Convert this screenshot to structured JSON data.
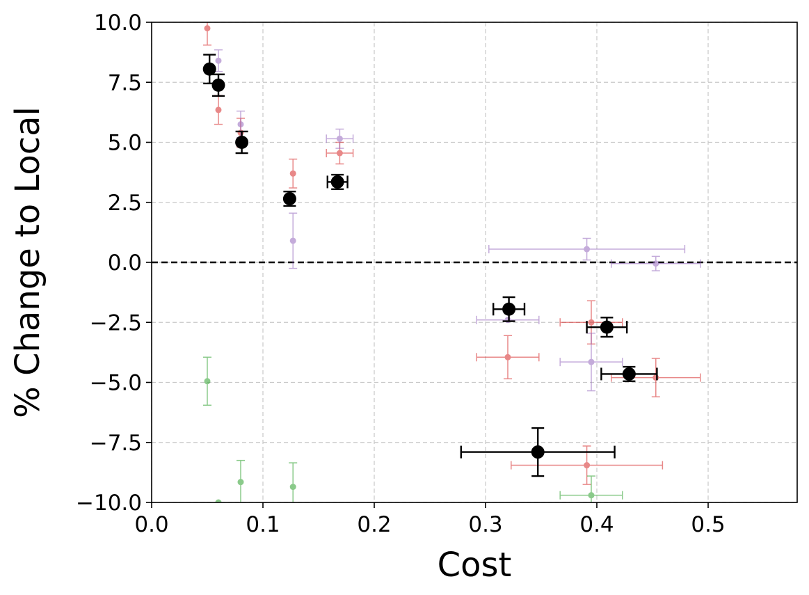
{
  "chart_data": {
    "type": "scatter",
    "title": "",
    "xlabel": "Cost",
    "ylabel": "% Change to Local",
    "xlim": [
      0.0,
      0.58
    ],
    "ylim": [
      -10.0,
      10.0
    ],
    "xticks": [
      "0.0",
      "0.1",
      "0.2",
      "0.3",
      "0.4",
      "0.5"
    ],
    "yticks": [
      "−10.0",
      "−7.5",
      "−5.0",
      "−2.5",
      "0.0",
      "2.5",
      "5.0",
      "7.5",
      "10.0"
    ],
    "grid": true,
    "reference_line": {
      "y": 0.0,
      "style": "dashed",
      "color": "#000000"
    },
    "series": [
      {
        "color": "#d62728",
        "points": [
          {
            "x": 0.05,
            "y": 9.75,
            "xerr": 0.0,
            "yerr": 0.7
          },
          {
            "x": 0.06,
            "y": 6.35,
            "xerr": 0.0,
            "yerr": 0.6
          },
          {
            "x": 0.08,
            "y": 5.4,
            "xerr": 0.0,
            "yerr": 0.6
          },
          {
            "x": 0.127,
            "y": 3.7,
            "xerr": 0.0,
            "yerr": 0.6
          },
          {
            "x": 0.169,
            "y": 4.55,
            "xerr": 0.012,
            "yerr": 0.45
          },
          {
            "x": 0.32,
            "y": -3.95,
            "xerr": 0.028,
            "yerr": 0.9
          },
          {
            "x": 0.395,
            "y": -2.5,
            "xerr": 0.028,
            "yerr": 0.9
          },
          {
            "x": 0.453,
            "y": -4.8,
            "xerr": 0.04,
            "yerr": 0.8
          },
          {
            "x": 0.391,
            "y": -8.45,
            "xerr": 0.068,
            "yerr": 0.8
          }
        ]
      },
      {
        "color": "#9467bd",
        "points": [
          {
            "x": 0.06,
            "y": 8.4,
            "xerr": 0.0,
            "yerr": 0.45
          },
          {
            "x": 0.08,
            "y": 5.75,
            "xerr": 0.0,
            "yerr": 0.55
          },
          {
            "x": 0.169,
            "y": 5.15,
            "xerr": 0.012,
            "yerr": 0.4
          },
          {
            "x": 0.127,
            "y": 0.9,
            "xerr": 0.0,
            "yerr": 1.15
          },
          {
            "x": 0.391,
            "y": 0.55,
            "xerr": 0.088,
            "yerr": 0.45
          },
          {
            "x": 0.453,
            "y": -0.05,
            "xerr": 0.04,
            "yerr": 0.3
          },
          {
            "x": 0.32,
            "y": -2.4,
            "xerr": 0.028,
            "yerr": 0.0
          },
          {
            "x": 0.395,
            "y": -4.15,
            "xerr": 0.028,
            "yerr": 1.2
          }
        ]
      },
      {
        "color": "#2ca02c",
        "points": [
          {
            "x": 0.05,
            "y": -4.95,
            "xerr": 0.0,
            "yerr": 1.0
          },
          {
            "x": 0.08,
            "y": -9.15,
            "xerr": 0.0,
            "yerr": 0.9
          },
          {
            "x": 0.127,
            "y": -9.35,
            "xerr": 0.0,
            "yerr": 1.0
          },
          {
            "x": 0.395,
            "y": -9.7,
            "xerr": 0.028,
            "yerr": 0.8
          },
          {
            "x": 0.06,
            "y": -10.0,
            "xerr": 0.0,
            "yerr": 0.0
          }
        ]
      },
      {
        "color": "#000000",
        "points": [
          {
            "x": 0.052,
            "y": 8.05,
            "xerr": 0.0,
            "yerr": 0.6
          },
          {
            "x": 0.06,
            "y": 7.38,
            "xerr": 0.0,
            "yerr": 0.45
          },
          {
            "x": 0.081,
            "y": 5.0,
            "xerr": 0.0,
            "yerr": 0.45
          },
          {
            "x": 0.124,
            "y": 2.65,
            "xerr": 0.0,
            "yerr": 0.3
          },
          {
            "x": 0.167,
            "y": 3.35,
            "xerr": 0.009,
            "yerr": 0.3
          },
          {
            "x": 0.321,
            "y": -1.95,
            "xerr": 0.014,
            "yerr": 0.5
          },
          {
            "x": 0.409,
            "y": -2.7,
            "xerr": 0.018,
            "yerr": 0.4
          },
          {
            "x": 0.429,
            "y": -4.65,
            "xerr": 0.025,
            "yerr": 0.3
          },
          {
            "x": 0.347,
            "y": -7.9,
            "xerr": 0.069,
            "yerr": 1.0
          }
        ]
      }
    ]
  }
}
